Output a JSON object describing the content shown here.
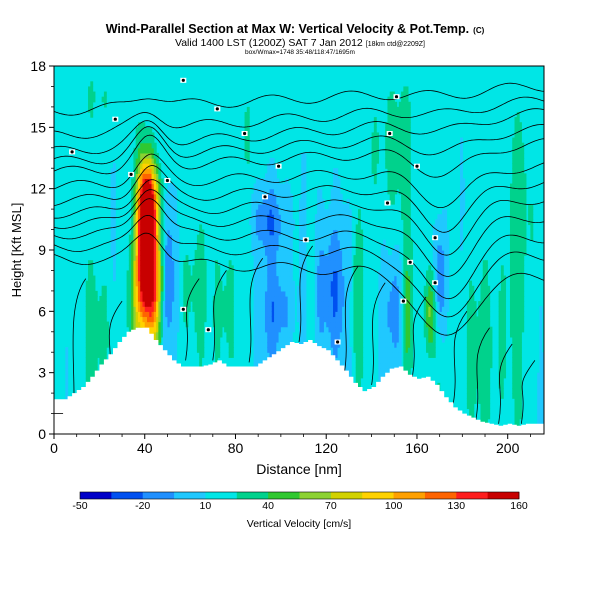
{
  "chart_data": {
    "type": "heatmap",
    "title": "Wind-Parallel Section at Max W: Vertical Velocity & Pot.Temp.",
    "title_mark": "(C)",
    "subtitle": "Valid 1400 LST (1200Z) SAT 7 Jan 2012",
    "subtitle_note": "[18km ctd@2209Z]",
    "subtitle2": "box/Wmax=1748 35:48/118:47/1695m",
    "xlabel": "Distance [nm]",
    "ylabel": "Height [Kft MSL]",
    "xlim": [
      0,
      216
    ],
    "ylim": [
      0,
      18
    ],
    "xticks": [
      0,
      40,
      80,
      120,
      160,
      200
    ],
    "yticks": [
      0,
      3,
      6,
      9,
      12,
      15,
      18
    ],
    "colorbar": {
      "label": "Vertical Velocity [cm/s]",
      "ticks": [
        -50,
        -20,
        10,
        40,
        70,
        100,
        130,
        160
      ],
      "range": [
        -50,
        160
      ],
      "colors": [
        "#0000c8",
        "#0050f0",
        "#2090ff",
        "#20c8ff",
        "#00e6e6",
        "#00d28c",
        "#30c830",
        "#8cd232",
        "#d2d200",
        "#ffd200",
        "#ffa000",
        "#ff6400",
        "#ff1e1e",
        "#c80000"
      ]
    },
    "terrain_kft": [
      [
        0,
        1.7
      ],
      [
        4,
        1.7
      ],
      [
        8,
        2.0
      ],
      [
        12,
        2.3
      ],
      [
        16,
        2.8
      ],
      [
        20,
        3.4
      ],
      [
        24,
        3.9
      ],
      [
        28,
        4.5
      ],
      [
        32,
        5.0
      ],
      [
        36,
        5.2
      ],
      [
        40,
        5.2
      ],
      [
        44,
        4.6
      ],
      [
        48,
        4.1
      ],
      [
        52,
        3.6
      ],
      [
        56,
        3.3
      ],
      [
        60,
        3.3
      ],
      [
        64,
        3.3
      ],
      [
        68,
        3.4
      ],
      [
        72,
        3.6
      ],
      [
        76,
        3.3
      ],
      [
        80,
        3.3
      ],
      [
        84,
        3.3
      ],
      [
        88,
        3.3
      ],
      [
        92,
        3.6
      ],
      [
        96,
        3.9
      ],
      [
        100,
        4.2
      ],
      [
        104,
        4.5
      ],
      [
        108,
        4.4
      ],
      [
        112,
        4.6
      ],
      [
        116,
        4.3
      ],
      [
        120,
        4.1
      ],
      [
        124,
        3.6
      ],
      [
        128,
        3.1
      ],
      [
        132,
        2.5
      ],
      [
        136,
        2.1
      ],
      [
        140,
        2.3
      ],
      [
        144,
        2.8
      ],
      [
        148,
        3.2
      ],
      [
        152,
        3.3
      ],
      [
        156,
        2.9
      ],
      [
        160,
        2.7
      ],
      [
        164,
        2.8
      ],
      [
        168,
        2.4
      ],
      [
        172,
        1.8
      ],
      [
        176,
        1.3
      ],
      [
        180,
        1.0
      ],
      [
        184,
        0.8
      ],
      [
        188,
        0.6
      ],
      [
        192,
        0.5
      ],
      [
        196,
        0.4
      ],
      [
        200,
        0.5
      ],
      [
        204,
        0.4
      ],
      [
        208,
        0.5
      ],
      [
        212,
        0.5
      ],
      [
        216,
        0.5
      ]
    ],
    "vertical_velocity_features": [
      {
        "x": 40,
        "z": 9.5,
        "value": 160,
        "sx": 2.5,
        "sz": 2.5
      },
      {
        "x": 44,
        "z": 7.5,
        "value": 120,
        "sx": 3.0,
        "sz": 2.5
      },
      {
        "x": 42,
        "z": 11.5,
        "value": 90,
        "sx": 3.0,
        "sz": 1.2
      },
      {
        "x": 37,
        "z": 6.5,
        "value": 50,
        "sx": 3.0,
        "sz": 2.0
      },
      {
        "x": 50,
        "z": 7.5,
        "value": -40,
        "sx": 2.2,
        "sz": 2.8
      },
      {
        "x": 62,
        "z": 7.0,
        "value": 30,
        "sx": 4.0,
        "sz": 2.5
      },
      {
        "x": 76,
        "z": 6.0,
        "value": 30,
        "sx": 3.0,
        "sz": 2.5
      },
      {
        "x": 98,
        "z": 6.0,
        "value": -20,
        "sx": 5.0,
        "sz": 2.0
      },
      {
        "x": 95,
        "z": 10.5,
        "value": -20,
        "sx": 6.0,
        "sz": 1.2
      },
      {
        "x": 122,
        "z": 7.0,
        "value": -25,
        "sx": 6.0,
        "sz": 2.5
      },
      {
        "x": 113,
        "z": 6.5,
        "value": 30,
        "sx": 2.0,
        "sz": 3.0
      },
      {
        "x": 133,
        "z": 6.5,
        "value": 35,
        "sx": 2.5,
        "sz": 2.5
      },
      {
        "x": 150,
        "z": 6.0,
        "value": -20,
        "sx": 3.0,
        "sz": 2.0
      },
      {
        "x": 156,
        "z": 6.0,
        "value": 40,
        "sx": 2.0,
        "sz": 2.5
      },
      {
        "x": 166,
        "z": 6.0,
        "value": 60,
        "sx": 1.6,
        "sz": 1.5
      },
      {
        "x": 170,
        "z": 7.5,
        "value": -30,
        "sx": 2.0,
        "sz": 2.0
      },
      {
        "x": 18,
        "z": 5.0,
        "value": 25,
        "sx": 6.0,
        "sz": 2.5
      },
      {
        "x": 190,
        "z": 4.0,
        "value": 25,
        "sx": 12.0,
        "sz": 3.0
      },
      {
        "x": 205,
        "z": 11.0,
        "value": 25,
        "sx": 6.0,
        "sz": 4.0
      },
      {
        "x": 150,
        "z": 14.0,
        "value": 25,
        "sx": 10.0,
        "sz": 3.0
      },
      {
        "x": 20,
        "z": 16.5,
        "value": 20,
        "sx": 10.0,
        "sz": 1.5
      },
      {
        "x": 80,
        "z": 15.0,
        "value": 20,
        "sx": 8.0,
        "sz": 3.0
      }
    ],
    "isentropes_kft": [
      {
        "left": 15.8,
        "right": 17.0,
        "bump": 0.6,
        "dip": 0.2
      },
      {
        "left": 14.6,
        "right": 16.3,
        "bump": 0.8,
        "dip": 0.3
      },
      {
        "left": 13.8,
        "right": 15.7,
        "bump": 1.0,
        "dip": 0.5
      },
      {
        "left": 13.3,
        "right": 14.9,
        "bump": 1.2,
        "dip": 0.8
      },
      {
        "left": 12.8,
        "right": 14.2,
        "bump": 1.3,
        "dip": 1.2
      },
      {
        "left": 12.1,
        "right": 13.1,
        "bump": 1.2,
        "dip": 1.6
      },
      {
        "left": 11.4,
        "right": 12.3,
        "bump": 1.5,
        "dip": 2.0
      },
      {
        "left": 10.8,
        "right": 11.5,
        "bump": 1.6,
        "dip": 2.4
      },
      {
        "left": 10.3,
        "right": 10.6,
        "bump": 1.8,
        "dip": 2.7
      },
      {
        "left": 9.8,
        "right": 9.6,
        "bump": 2.0,
        "dip": 3.0
      },
      {
        "left": 9.2,
        "right": 8.7,
        "bump": 1.8,
        "dip": 3.2
      },
      {
        "left": 8.6,
        "right": 7.6,
        "bump": 1.5,
        "dip": 3.2
      }
    ],
    "isentrope_labels": [
      {
        "x": 8,
        "z": 13.8
      },
      {
        "x": 27,
        "z": 15.4
      },
      {
        "x": 50,
        "z": 12.4
      },
      {
        "x": 57,
        "z": 17.3
      },
      {
        "x": 72,
        "z": 15.9
      },
      {
        "x": 84,
        "z": 14.7
      },
      {
        "x": 93,
        "z": 11.6
      },
      {
        "x": 99,
        "z": 13.1
      },
      {
        "x": 111,
        "z": 9.5
      },
      {
        "x": 148,
        "z": 14.7
      },
      {
        "x": 151,
        "z": 16.5
      },
      {
        "x": 160,
        "z": 13.1
      },
      {
        "x": 147,
        "z": 11.3
      },
      {
        "x": 157,
        "z": 8.4
      },
      {
        "x": 168,
        "z": 9.6
      },
      {
        "x": 168,
        "z": 7.4
      },
      {
        "x": 154,
        "z": 6.5
      },
      {
        "x": 125,
        "z": 4.5
      },
      {
        "x": 57,
        "z": 6.1
      },
      {
        "x": 68,
        "z": 5.1
      },
      {
        "x": 34,
        "z": 12.7
      }
    ]
  }
}
